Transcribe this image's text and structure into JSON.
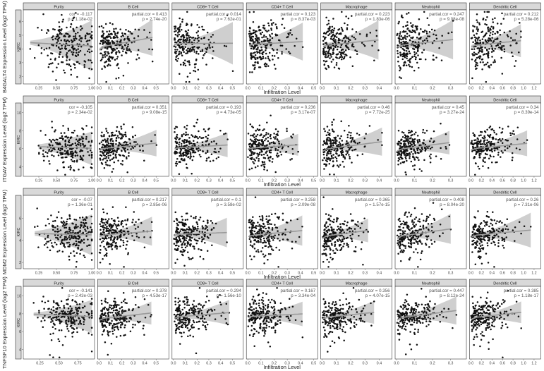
{
  "chart_data": {
    "type": "scatter",
    "layout": "4 rows x 7 columns faceted scatter plots with loess fit and confidence band",
    "x_axis_title": "Infiltration Level",
    "cancer_label": "KIRC",
    "columns": [
      "Purity",
      "B Cell",
      "CD8+ T Cell",
      "CD4+ T Cell",
      "Macrophage",
      "Neutrophil",
      "Dendritic Cell"
    ],
    "rows": [
      {
        "gene": "B4GALT4",
        "ylabel": "B4GALT4 Expression Level (log2 TPM)",
        "ylim": [
          1.5,
          6.8
        ],
        "yticks": [
          "2",
          "3",
          "4",
          "5",
          "6"
        ],
        "panels": [
          {
            "cell": "Purity",
            "stat1": "cor = -0.117",
            "stat2": "p = 1.18e-02",
            "r": -0.117,
            "xlim": [
              0.05,
              1.02
            ],
            "xticks": [
              "0.25",
              "0.50",
              "0.75",
              "1.00"
            ],
            "center": 4.4,
            "spread": 0.9
          },
          {
            "cell": "B Cell",
            "stat1": "partial.cor = 0.413",
            "stat2": "p = 2.74e-20",
            "r": 0.413,
            "xlim": [
              0,
              0.6
            ],
            "xticks": [
              "0.0",
              "0.1",
              "0.2",
              "0.3",
              "0.4",
              "0.5"
            ],
            "center": 4.4,
            "spread": 0.8
          },
          {
            "cell": "CD8+ T Cell",
            "stat1": "partial.cor = 0.014",
            "stat2": "p = 7.62e-01",
            "r": 0.014,
            "xlim": [
              0,
              0.58
            ],
            "xticks": [
              "0.0",
              "0.1",
              "0.2",
              "0.3",
              "0.4",
              "0.5"
            ],
            "center": 4.4,
            "spread": 0.9
          },
          {
            "cell": "CD4+ T Cell",
            "stat1": "partial.cor = 0.123",
            "stat2": "p = 8.37e-03",
            "r": 0.123,
            "xlim": [
              0,
              0.52
            ],
            "xticks": [
              "0.0",
              "0.1",
              "0.2",
              "0.3",
              "0.4",
              "0.5"
            ],
            "center": 4.4,
            "spread": 0.9
          },
          {
            "cell": "Macrophage",
            "stat1": "partial.cor = 0.223",
            "stat2": "p = 1.83e-06",
            "r": 0.223,
            "xlim": [
              0,
              0.48
            ],
            "xticks": [
              "0.0",
              "0.1",
              "0.2",
              "0.3",
              "0.4"
            ],
            "center": 4.4,
            "spread": 0.9
          },
          {
            "cell": "Neutrophil",
            "stat1": "partial.cor = 0.247",
            "stat2": "p = 9.08e-08",
            "r": 0.247,
            "xlim": [
              0,
              0.38
            ],
            "xticks": [
              "0.0",
              "0.1",
              "0.2",
              "0.3"
            ],
            "center": 4.4,
            "spread": 0.9
          },
          {
            "cell": "Dendritic Cell",
            "stat1": "partial.cor = 0.212",
            "stat2": "p = 5.28e-06",
            "r": 0.212,
            "xlim": [
              0,
              1.3
            ],
            "xticks": [
              "0.0",
              "0.2",
              "0.4",
              "0.6",
              "0.8",
              "1.0",
              "1.2"
            ],
            "center": 4.4,
            "spread": 0.9
          }
        ]
      },
      {
        "gene": "ITGAV",
        "ylabel": "ITGAV Expression Level (log2 TPM)",
        "ylim": [
          3,
          11
        ],
        "yticks": [
          "4",
          "6",
          "8",
          "10"
        ],
        "panels": [
          {
            "cell": "Purity",
            "stat1": "cor = -0.105",
            "stat2": "p = 2.34e-02",
            "r": -0.105,
            "xlim": [
              0.05,
              1.02
            ],
            "xticks": [
              "0.25",
              "0.50",
              "0.75",
              "1.00"
            ],
            "center": 6.2,
            "spread": 1.1
          },
          {
            "cell": "B Cell",
            "stat1": "partial.cor = 0.351",
            "stat2": "p = 9.08e-15",
            "r": 0.351,
            "xlim": [
              0,
              0.6
            ],
            "xticks": [
              "0.0",
              "0.1",
              "0.2",
              "0.3",
              "0.4",
              "0.5"
            ],
            "center": 6.2,
            "spread": 1.0
          },
          {
            "cell": "CD8+ T Cell",
            "stat1": "partial.cor = 0.193",
            "stat2": "p = 4.73e-05",
            "r": 0.193,
            "xlim": [
              0,
              0.58
            ],
            "xticks": [
              "0.0",
              "0.1",
              "0.2",
              "0.3",
              "0.4",
              "0.5"
            ],
            "center": 6.2,
            "spread": 1.1
          },
          {
            "cell": "CD4+ T Cell",
            "stat1": "partial.cor = 0.236",
            "stat2": "p = 3.17e-07",
            "r": 0.236,
            "xlim": [
              0,
              0.52
            ],
            "xticks": [
              "0.0",
              "0.1",
              "0.2",
              "0.3",
              "0.4",
              "0.5"
            ],
            "center": 6.2,
            "spread": 1.1
          },
          {
            "cell": "Macrophage",
            "stat1": "partial.cor = 0.46",
            "stat2": "p = 7.72e-25",
            "r": 0.46,
            "xlim": [
              0,
              0.48
            ],
            "xticks": [
              "0.0",
              "0.1",
              "0.2",
              "0.3",
              "0.4"
            ],
            "center": 6.2,
            "spread": 1.0
          },
          {
            "cell": "Neutrophil",
            "stat1": "partial.cor = 0.45",
            "stat2": "p = 3.27e-24",
            "r": 0.45,
            "xlim": [
              0,
              0.38
            ],
            "xticks": [
              "0.0",
              "0.1",
              "0.2",
              "0.3"
            ],
            "center": 6.2,
            "spread": 1.0
          },
          {
            "cell": "Dendritic Cell",
            "stat1": "partial.cor = 0.34",
            "stat2": "p = 8.39e-14",
            "r": 0.34,
            "xlim": [
              0,
              1.3
            ],
            "xticks": [
              "0.0",
              "0.2",
              "0.4",
              "0.6",
              "0.8",
              "1.0",
              "1.2"
            ],
            "center": 6.2,
            "spread": 1.0
          }
        ]
      },
      {
        "gene": "MDM2",
        "ylabel": "MDM2 Expression Level (log2 TPM)",
        "ylim": [
          1.5,
          8
        ],
        "yticks": [
          "2",
          "4",
          "6"
        ],
        "panels": [
          {
            "cell": "Purity",
            "stat1": "cor = -0.07",
            "stat2": "p = 1.36e-01",
            "r": -0.07,
            "xlim": [
              0.05,
              1.02
            ],
            "xticks": [
              "0.25",
              "0.50",
              "0.75",
              "1.00"
            ],
            "center": 4.6,
            "spread": 0.9
          },
          {
            "cell": "B Cell",
            "stat1": "partial.cor = 0.217",
            "stat2": "p = 2.85e-06",
            "r": 0.217,
            "xlim": [
              0,
              0.6
            ],
            "xticks": [
              "0.0",
              "0.1",
              "0.2",
              "0.3",
              "0.4",
              "0.5"
            ],
            "center": 4.6,
            "spread": 0.9
          },
          {
            "cell": "CD8+ T Cell",
            "stat1": "partial.cor = 0.1",
            "stat2": "p = 3.58e-02",
            "r": 0.1,
            "xlim": [
              0,
              0.58
            ],
            "xticks": [
              "0.0",
              "0.1",
              "0.2",
              "0.3",
              "0.4",
              "0.5"
            ],
            "center": 4.6,
            "spread": 0.9
          },
          {
            "cell": "CD4+ T Cell",
            "stat1": "partial.cor = 0.258",
            "stat2": "p = 2.09e-08",
            "r": 0.258,
            "xlim": [
              0,
              0.52
            ],
            "xticks": [
              "0.0",
              "0.1",
              "0.2",
              "0.3",
              "0.4",
              "0.5"
            ],
            "center": 4.6,
            "spread": 0.9
          },
          {
            "cell": "Macrophage",
            "stat1": "partial.cor = 0.365",
            "stat2": "p = 1.57e-15",
            "r": 0.365,
            "xlim": [
              0,
              0.48
            ],
            "xticks": [
              "0.0",
              "0.1",
              "0.2",
              "0.3",
              "0.4"
            ],
            "center": 4.6,
            "spread": 0.9
          },
          {
            "cell": "Neutrophil",
            "stat1": "partial.cor = 0.408",
            "stat2": "p = 8.04e-20",
            "r": 0.408,
            "xlim": [
              0,
              0.38
            ],
            "xticks": [
              "0.0",
              "0.1",
              "0.2",
              "0.3"
            ],
            "center": 4.6,
            "spread": 0.9
          },
          {
            "cell": "Dendritic Cell",
            "stat1": "partial.cor = 0.26",
            "stat2": "p = 7.31e-06",
            "r": 0.26,
            "xlim": [
              0,
              1.3
            ],
            "xticks": [
              "0.0",
              "0.2",
              "0.4",
              "0.6",
              "0.8",
              "1.0",
              "1.2"
            ],
            "center": 4.6,
            "spread": 0.9
          }
        ]
      },
      {
        "gene": "TNFSF10",
        "ylabel": "TNFSF10 Expression Level (log2 TPM)",
        "ylim": [
          3,
          11
        ],
        "yticks": [
          "4",
          "6",
          "8",
          "10"
        ],
        "panels": [
          {
            "cell": "Purity",
            "stat1": "cor = -0.141",
            "stat2": "p = 2.43e-03",
            "r": -0.141,
            "xlim": [
              0.05,
              0.95
            ],
            "xticks": [
              "0.25",
              "0.50",
              "0.75"
            ],
            "center": 7.9,
            "spread": 1.0
          },
          {
            "cell": "B Cell",
            "stat1": "partial.cor = 0.378",
            "stat2": "p = 4.53e-17",
            "r": 0.378,
            "xlim": [
              0,
              0.6
            ],
            "xticks": [
              "0.0",
              "0.1",
              "0.2",
              "0.3",
              "0.4",
              "0.5"
            ],
            "center": 7.7,
            "spread": 1.0
          },
          {
            "cell": "CD8+ T Cell",
            "stat1": "partial.cor = 0.294",
            "stat2": "p = 1.56e-10",
            "r": 0.294,
            "xlim": [
              0,
              0.58
            ],
            "xticks": [
              "0.0",
              "0.1",
              "0.2",
              "0.3",
              "0.4",
              "0.5"
            ],
            "center": 7.8,
            "spread": 1.0
          },
          {
            "cell": "CD4+ T Cell",
            "stat1": "partial.cor = 0.167",
            "stat2": "p = 3.34e-04",
            "r": 0.167,
            "xlim": [
              0,
              0.52
            ],
            "xticks": [
              "0.0",
              "0.1",
              "0.2",
              "0.3",
              "0.4",
              "0.5"
            ],
            "center": 7.8,
            "spread": 1.0
          },
          {
            "cell": "Macrophage",
            "stat1": "partial.cor = 0.356",
            "stat2": "p = 4.07e-15",
            "r": 0.356,
            "xlim": [
              0,
              0.48
            ],
            "xticks": [
              "0.0",
              "0.1",
              "0.2",
              "0.3",
              "0.4"
            ],
            "center": 7.8,
            "spread": 1.0
          },
          {
            "cell": "Neutrophil",
            "stat1": "partial.cor = 0.447",
            "stat2": "p = 8.12e-24",
            "r": 0.447,
            "xlim": [
              0,
              0.38
            ],
            "xticks": [
              "0.0",
              "0.1",
              "0.2",
              "0.3"
            ],
            "center": 7.8,
            "spread": 1.0
          },
          {
            "cell": "Dendritic Cell",
            "stat1": "partial.cor = 0.385",
            "stat2": "p = 1.18e-17",
            "r": 0.385,
            "xlim": [
              0,
              1.3
            ],
            "xticks": [
              "0.0",
              "0.2",
              "0.4",
              "0.6",
              "0.8",
              "1.0",
              "1.2"
            ],
            "center": 7.8,
            "spread": 1.0
          }
        ]
      }
    ]
  }
}
